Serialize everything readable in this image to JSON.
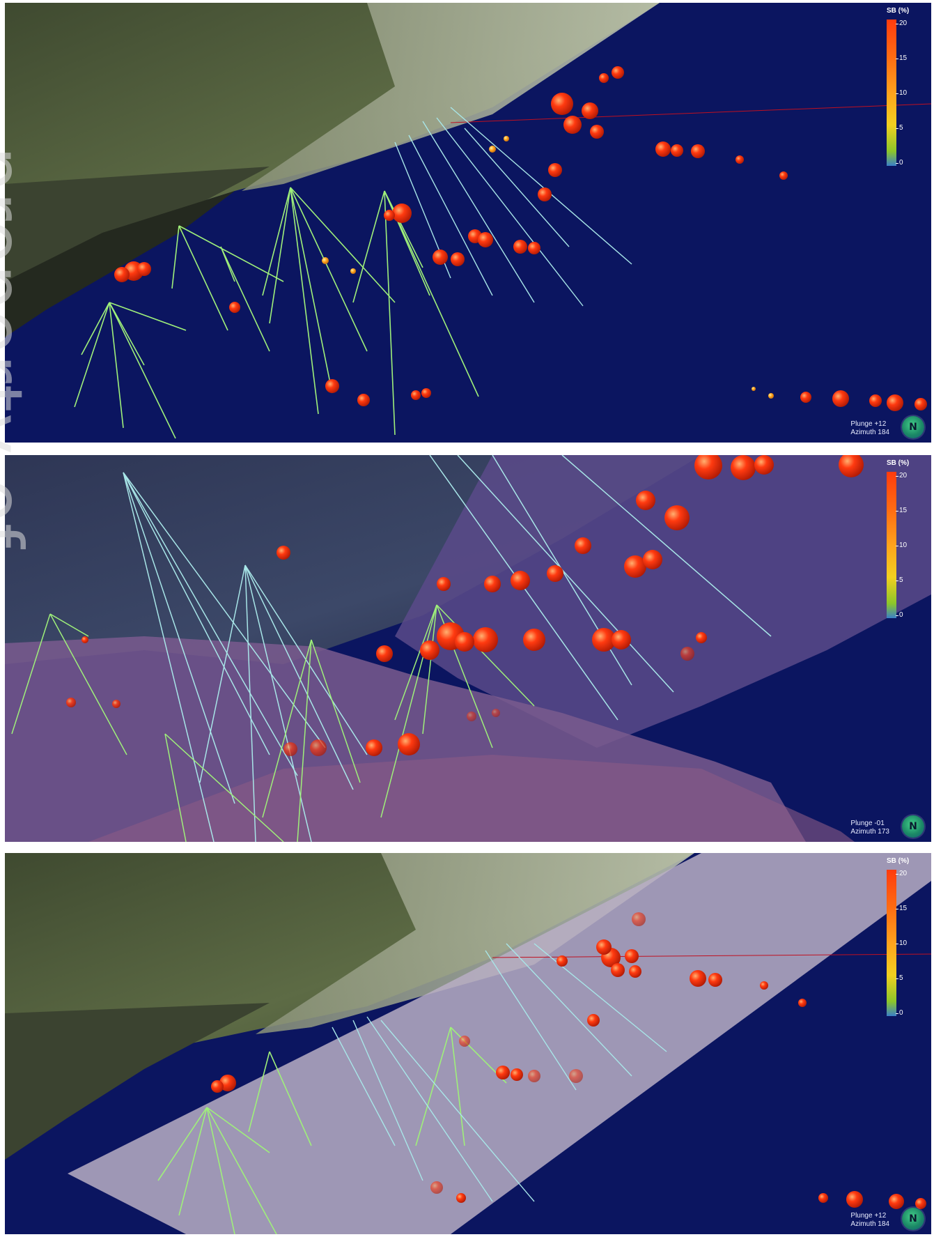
{
  "watermark": "property of",
  "colors": {
    "background": "#0b1560",
    "hole_trace": "#9ff07a",
    "hole_trace_alt": "#a8e6e8",
    "assay_high": "#ff3a10",
    "assay_mid": "#ffa21c",
    "assay_low": "#f2d020"
  },
  "panels": [
    {
      "name": "view-1",
      "legend": {
        "title": "SB (%)",
        "ticks": [
          "20",
          "15",
          "10",
          "5",
          "0"
        ]
      },
      "view": {
        "plunge": "Plunge +12",
        "azimuth": "Azimuth 184"
      },
      "north_label": "N",
      "layers": [
        "terrain",
        "drillholes",
        "assay-spheres"
      ]
    },
    {
      "name": "view-2",
      "legend": {
        "title": "SB (%)",
        "ticks": [
          "20",
          "15",
          "10",
          "5",
          "0"
        ]
      },
      "view": {
        "plunge": "Plunge -01",
        "azimuth": "Azimuth 173"
      },
      "north_label": "N",
      "layers": [
        "terrain",
        "surface-model",
        "drillholes",
        "assay-spheres"
      ]
    },
    {
      "name": "view-3",
      "legend": {
        "title": "SB (%)",
        "ticks": [
          "20",
          "15",
          "10",
          "5",
          "0"
        ]
      },
      "view": {
        "plunge": "Plunge +12",
        "azimuth": "Azimuth 184"
      },
      "north_label": "N",
      "layers": [
        "terrain",
        "plan-overlay",
        "drillholes",
        "assay-spheres"
      ]
    }
  ]
}
